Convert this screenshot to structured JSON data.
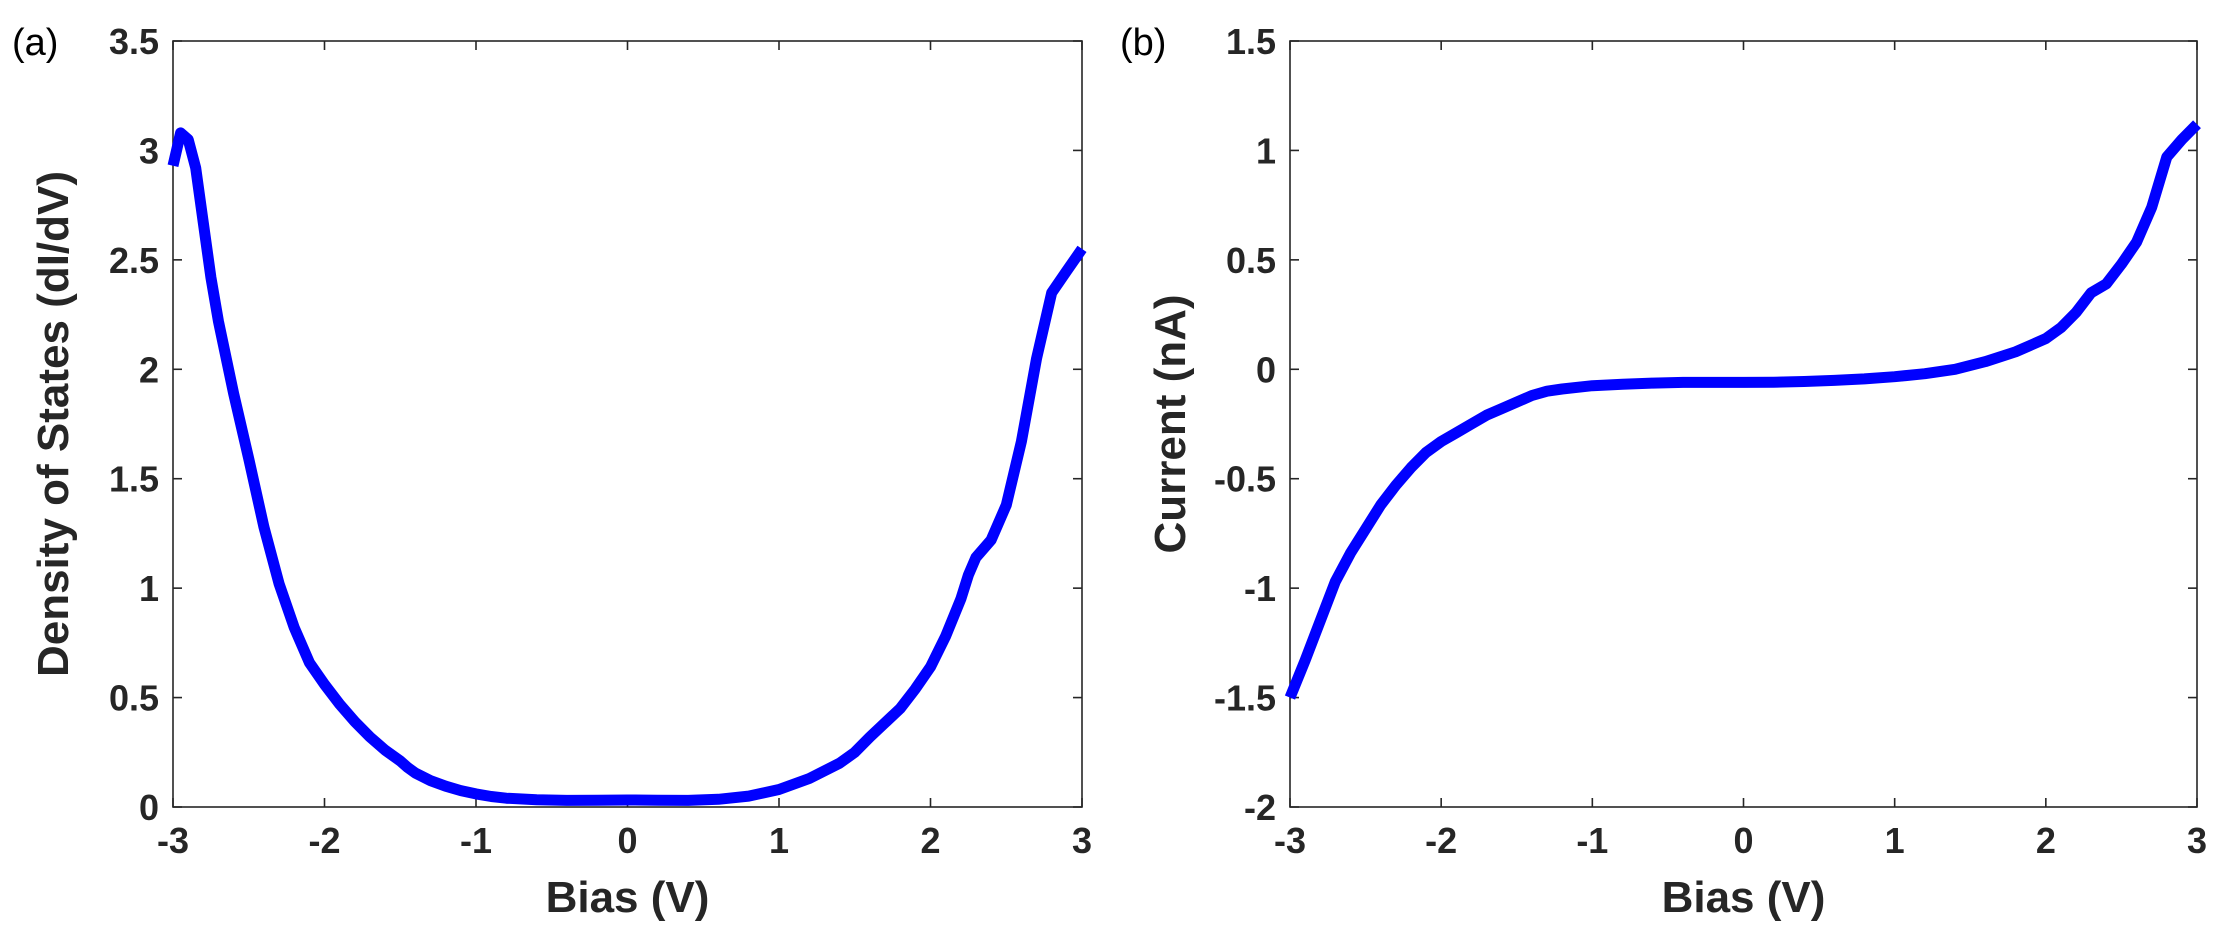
{
  "chart_data": [
    {
      "type": "line",
      "panel_label": "(a)",
      "xlabel": "Bias (V)",
      "ylabel": "Density of States (dI/dV)",
      "xlim": [
        -3,
        3
      ],
      "ylim": [
        0,
        3.5
      ],
      "xticks": [
        -3,
        -2,
        -1,
        0,
        1,
        2,
        3
      ],
      "xtick_labels": [
        "-3",
        "-2",
        "-1",
        "0",
        "1",
        "2",
        "3"
      ],
      "yticks": [
        0,
        0.5,
        1,
        1.5,
        2,
        2.5,
        3,
        3.5
      ],
      "ytick_labels": [
        "0",
        "0.5",
        "1",
        "1.5",
        "2",
        "2.5",
        "3",
        "3.5"
      ],
      "grid": false,
      "line_color": "#0000ff",
      "series": [
        {
          "x": [
            -3.0,
            -2.95,
            -2.9,
            -2.85,
            -2.8,
            -2.75,
            -2.7,
            -2.6,
            -2.5,
            -2.4,
            -2.3,
            -2.2,
            -2.1,
            -2.0,
            -1.9,
            -1.8,
            -1.7,
            -1.6,
            -1.5,
            -1.45,
            -1.4,
            -1.3,
            -1.2,
            -1.1,
            -1.0,
            -0.9,
            -0.8,
            -0.6,
            -0.4,
            -0.2,
            0.0,
            0.2,
            0.4,
            0.6,
            0.8,
            1.0,
            1.2,
            1.4,
            1.5,
            1.6,
            1.8,
            1.9,
            2.0,
            2.1,
            2.2,
            2.25,
            2.3,
            2.4,
            2.5,
            2.6,
            2.7,
            2.8,
            2.9,
            3.0
          ],
          "y": [
            2.93,
            3.08,
            3.05,
            2.92,
            2.67,
            2.42,
            2.22,
            1.89,
            1.59,
            1.28,
            1.02,
            0.82,
            0.66,
            0.56,
            0.47,
            0.39,
            0.32,
            0.26,
            0.21,
            0.18,
            0.155,
            0.12,
            0.095,
            0.075,
            0.06,
            0.048,
            0.04,
            0.033,
            0.03,
            0.031,
            0.032,
            0.031,
            0.03,
            0.035,
            0.05,
            0.08,
            0.13,
            0.2,
            0.25,
            0.32,
            0.45,
            0.54,
            0.64,
            0.78,
            0.95,
            1.06,
            1.14,
            1.22,
            1.38,
            1.67,
            2.05,
            2.35,
            2.45,
            2.55
          ]
        }
      ]
    },
    {
      "type": "line",
      "panel_label": "(b)",
      "xlabel": "Bias (V)",
      "ylabel": "Current (nA)",
      "xlim": [
        -3,
        3
      ],
      "ylim": [
        -2,
        1.5
      ],
      "xticks": [
        -3,
        -2,
        -1,
        0,
        1,
        2,
        3
      ],
      "xtick_labels": [
        "-3",
        "-2",
        "-1",
        "0",
        "1",
        "2",
        "3"
      ],
      "yticks": [
        -2,
        -1.5,
        -1,
        -0.5,
        0,
        0.5,
        1,
        1.5
      ],
      "ytick_labels": [
        "-2",
        "-1.5",
        "-1",
        "-0.5",
        "0",
        "0.5",
        "1",
        "1.5"
      ],
      "grid": false,
      "line_color": "#0000ff",
      "series": [
        {
          "x": [
            -3.0,
            -2.9,
            -2.8,
            -2.7,
            -2.6,
            -2.5,
            -2.4,
            -2.3,
            -2.2,
            -2.1,
            -2.0,
            -1.9,
            -1.8,
            -1.7,
            -1.6,
            -1.5,
            -1.4,
            -1.3,
            -1.2,
            -1.0,
            -0.8,
            -0.6,
            -0.4,
            -0.2,
            0.0,
            0.2,
            0.4,
            0.6,
            0.8,
            1.0,
            1.2,
            1.4,
            1.6,
            1.8,
            2.0,
            2.1,
            2.2,
            2.3,
            2.4,
            2.5,
            2.6,
            2.7,
            2.8,
            2.9,
            3.0
          ],
          "y": [
            -1.5,
            -1.33,
            -1.15,
            -0.97,
            -0.84,
            -0.73,
            -0.62,
            -0.53,
            -0.45,
            -0.38,
            -0.33,
            -0.29,
            -0.25,
            -0.21,
            -0.18,
            -0.15,
            -0.12,
            -0.1,
            -0.09,
            -0.075,
            -0.068,
            -0.063,
            -0.06,
            -0.06,
            -0.06,
            -0.059,
            -0.056,
            -0.051,
            -0.044,
            -0.034,
            -0.02,
            0.0,
            0.035,
            0.08,
            0.14,
            0.19,
            0.26,
            0.35,
            0.39,
            0.48,
            0.58,
            0.74,
            0.97,
            1.05,
            1.12
          ]
        }
      ]
    }
  ]
}
